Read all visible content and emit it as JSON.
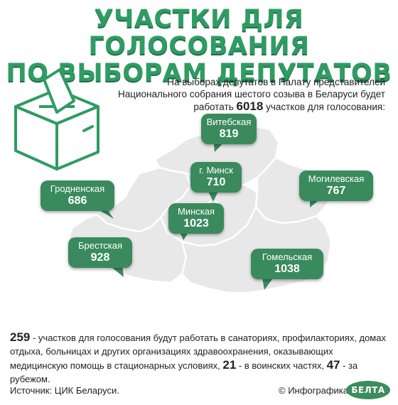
{
  "title": {
    "line1": "УЧАСТКИ ДЛЯ ГОЛОСОВАНИЯ",
    "line2": "ПО ВЫБОРАМ ДЕПУТАТОВ"
  },
  "intro": {
    "text_before": "На выборах депутатов в Палату представителей Национального собрания шестого созыва в Беларуси будет работать",
    "total": "6018",
    "text_after": "участков для голосования:"
  },
  "regions": [
    {
      "name": "Витебская",
      "value": "819"
    },
    {
      "name": "г. Минск",
      "value": "710"
    },
    {
      "name": "Гродненская",
      "value": "686"
    },
    {
      "name": "Могилевская",
      "value": "767"
    },
    {
      "name": "Минская",
      "value": "1023"
    },
    {
      "name": "Брестская",
      "value": "928"
    },
    {
      "name": "Гомельская",
      "value": "1038"
    }
  ],
  "footer": {
    "num1": "259",
    "text1": " -  участков для голосования будут работать в санаториях, профилакториях, домах отдыха, больницах и других организациях здравоохранения, оказывающих медицинскую помощь в стационарных условиях,",
    "num2": "21",
    "text2": " - в воинских частях,",
    "num3": "47",
    "text3": " - за рубежом."
  },
  "source": "Источник: ЦИК Беларуси.",
  "credit": "© Инфографика",
  "logo": "БЕЛТА",
  "colors": {
    "accent": "#2f9c63",
    "callout": "#3a8a5e",
    "map_fill": "#e6e6e6",
    "map_border": "#ffffff"
  }
}
